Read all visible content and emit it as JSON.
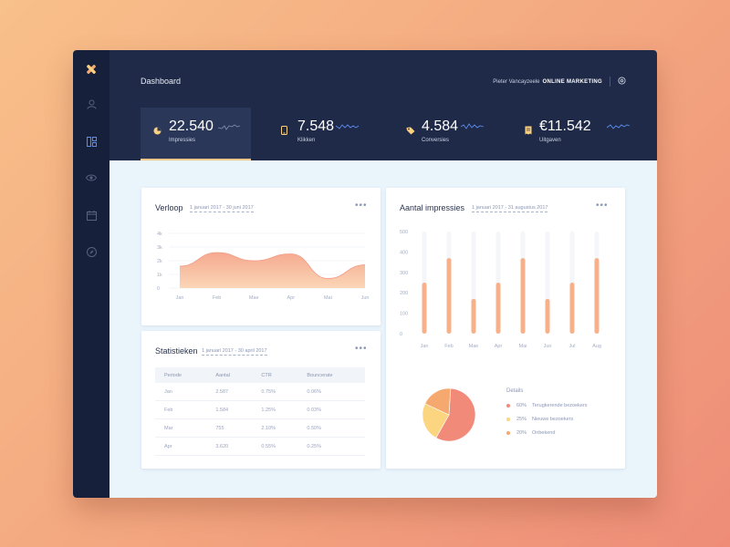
{
  "header": {
    "title": "Dashboard",
    "user_name": "Pieter Vancayzeele",
    "user_role": "ONLINE MARKETING"
  },
  "sidebar": {
    "items": [
      {
        "icon": "logo-x-icon",
        "active": false
      },
      {
        "icon": "user-icon",
        "active": false
      },
      {
        "icon": "layout-icon",
        "active": true
      },
      {
        "icon": "eye-icon",
        "active": false
      },
      {
        "icon": "calendar-icon",
        "active": false
      },
      {
        "icon": "compass-icon",
        "active": false
      }
    ]
  },
  "stats": [
    {
      "value": "22.540",
      "label": "Impressies",
      "icon": "pie-icon",
      "active": true
    },
    {
      "value": "7.548",
      "label": "Klikken",
      "icon": "phone-icon",
      "active": false
    },
    {
      "value": "4.584",
      "label": "Conversies",
      "icon": "tag-icon",
      "active": false
    },
    {
      "value": "€11.542",
      "label": "Uitgaven",
      "icon": "receipt-icon",
      "active": false
    }
  ],
  "verloop": {
    "title": "Verloop",
    "date": "1 januari 2017 - 30 juni 2017"
  },
  "statistieken": {
    "title": "Statistieken",
    "date": "1 januari 2017 - 30 april 2017",
    "columns": [
      "Periode",
      "Aantal",
      "CTR",
      "Bouncerate"
    ],
    "rows": [
      [
        "Jan",
        "2.587",
        "0.75%",
        "0.06%"
      ],
      [
        "Feb",
        "1.584",
        "1.25%",
        "0.03%"
      ],
      [
        "Mar",
        "755",
        "2.10%",
        "0.50%"
      ],
      [
        "Apr",
        "3.620",
        "0.55%",
        "0.25%"
      ]
    ]
  },
  "impressies": {
    "title": "Aantal impressies",
    "date": "1 januari 2017 - 31 augustus 2017"
  },
  "details": {
    "title": "Details",
    "items": [
      {
        "pct": "60%",
        "label": "Terugkerende bezoekers",
        "color": "#f28a7a"
      },
      {
        "pct": "25%",
        "label": "Nieuwe bezoekers",
        "color": "#fbd580"
      },
      {
        "pct": "20%",
        "label": "Onbekend",
        "color": "#f6a96e"
      }
    ]
  },
  "colors": {
    "accent": "#f7b08a",
    "header_bg": "#1f2a48",
    "sidebar_bg": "#16203a",
    "active_icon": "#5b8def"
  },
  "chart_data": [
    {
      "type": "area",
      "categories": [
        "Jan",
        "Feb",
        "Mae",
        "Apr",
        "Mai",
        "Jun"
      ],
      "ylim": [
        0,
        4000
      ],
      "yticks": [
        "0",
        "1k",
        "2k",
        "3k",
        "4k"
      ],
      "series": [
        {
          "values": [
            1600,
            2600,
            2000,
            2500,
            700,
            1700
          ]
        }
      ],
      "grid": true
    },
    {
      "type": "bar",
      "categories": [
        "Jan",
        "Feb",
        "Mae",
        "Apr",
        "Mai",
        "Jun",
        "Jul",
        "Aug"
      ],
      "values": [
        250,
        370,
        170,
        250,
        370,
        170,
        250,
        370
      ],
      "ylim": [
        0,
        500
      ],
      "yticks": [
        "0",
        "100",
        "200",
        "300",
        "400",
        "500"
      ]
    },
    {
      "type": "pie",
      "values": [
        60,
        25,
        20
      ],
      "labels": [
        "Terugkerende bezoekers",
        "Nieuwe bezoekers",
        "Onbekend"
      ]
    }
  ]
}
